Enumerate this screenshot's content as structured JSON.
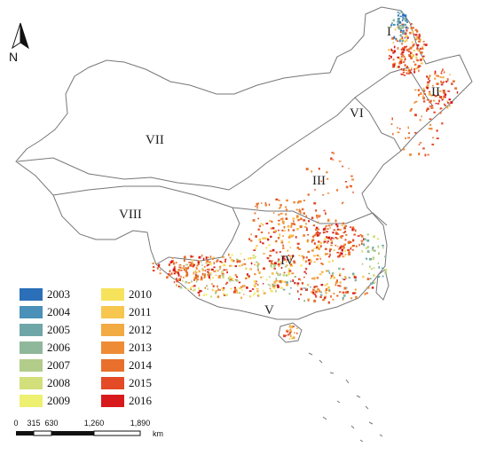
{
  "north_arrow": {
    "label": "N",
    "icon": "north-arrow-icon"
  },
  "regions": [
    "I",
    "II",
    "III",
    "IV",
    "V",
    "VI",
    "VII",
    "VIII"
  ],
  "legend": [
    {
      "year": "2003",
      "color": "#2b6fb8"
    },
    {
      "year": "2004",
      "color": "#4a90b8"
    },
    {
      "year": "2005",
      "color": "#6fa6a8"
    },
    {
      "year": "2006",
      "color": "#8fb89a"
    },
    {
      "year": "2007",
      "color": "#b2cc8a"
    },
    {
      "year": "2008",
      "color": "#d3df7a"
    },
    {
      "year": "2009",
      "color": "#eef070"
    },
    {
      "year": "2010",
      "color": "#f7e25c"
    },
    {
      "year": "2011",
      "color": "#f6c64e"
    },
    {
      "year": "2012",
      "color": "#f2aa43"
    },
    {
      "year": "2013",
      "color": "#ee8c36"
    },
    {
      "year": "2014",
      "color": "#e8702c"
    },
    {
      "year": "2015",
      "color": "#e34a26"
    },
    {
      "year": "2016",
      "color": "#d7191c"
    }
  ],
  "scale_bar": {
    "ticks": [
      "0",
      "315",
      "630",
      "1,260",
      "1,890"
    ],
    "unit": "km"
  }
}
